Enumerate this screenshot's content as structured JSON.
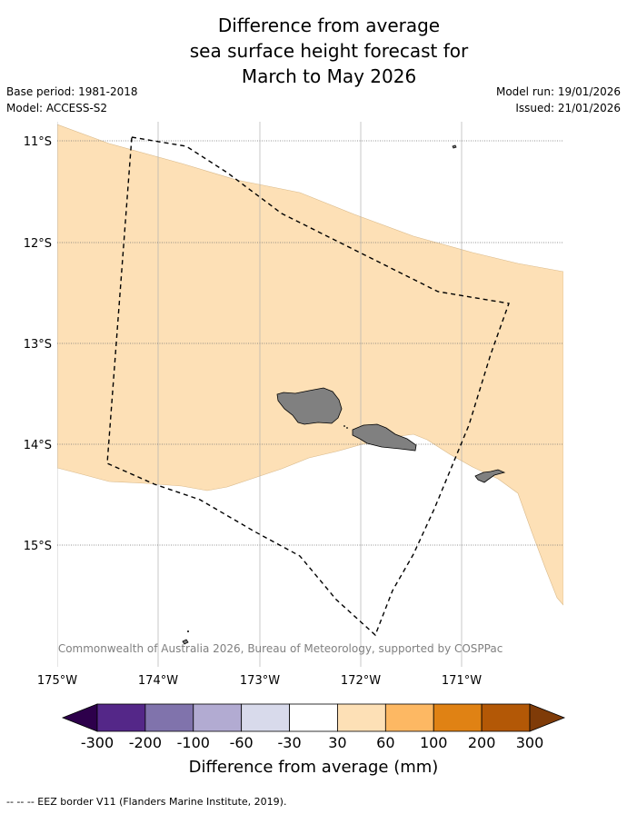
{
  "title": {
    "line1": "Difference from average",
    "line2": "sea surface height forecast for",
    "line3": "March to May 2026"
  },
  "meta": {
    "base_period": "Base period: 1981-2018",
    "model": "Model: ACCESS-S2",
    "model_run": "Model run: 19/01/2026",
    "issued": "Issued: 21/01/2026"
  },
  "map": {
    "lat_labels": [
      "11°S",
      "12°S",
      "13°S",
      "14°S",
      "15°S"
    ],
    "lon_labels": [
      "175°W",
      "174°W",
      "173°W",
      "172°W",
      "171°W"
    ],
    "copyright": "© Commonwealth of Australia 2026, Bureau of Meteorology, supported by COSPPac",
    "land_color": "#808080",
    "anomaly_color_30_60": "#fde0b6"
  },
  "colorbar": {
    "title": "Difference from average (mm)",
    "ticks": [
      "-300",
      "-200",
      "-100",
      "-60",
      "-30",
      "30",
      "60",
      "100",
      "200",
      "300"
    ],
    "colors": [
      "#2d004b",
      "#542788",
      "#8073ac",
      "#b2abd2",
      "#d8daeb",
      "#ffffff",
      "#fde0b6",
      "#fdb863",
      "#e08214",
      "#b35806",
      "#7f3b08"
    ]
  },
  "footer": {
    "legend_text": "--  --  -- EEZ border V11 (Flanders Marine Institute, 2019)."
  }
}
